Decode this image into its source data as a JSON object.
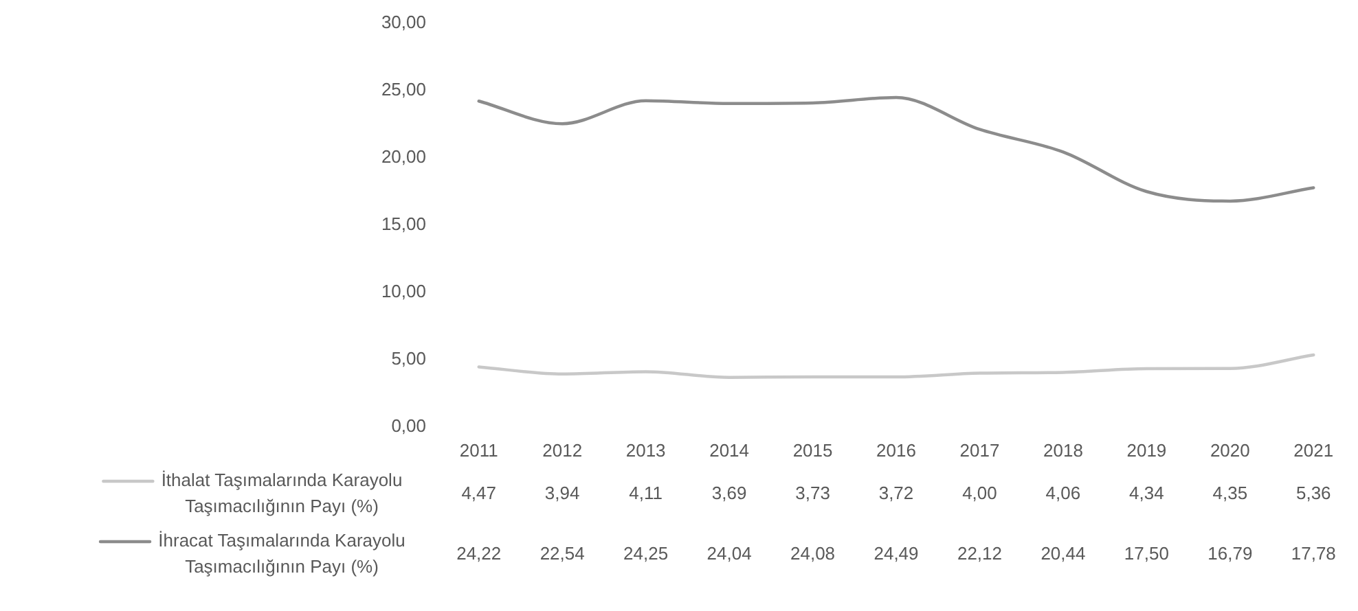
{
  "chart_data": {
    "type": "line",
    "categories": [
      "2011",
      "2012",
      "2013",
      "2014",
      "2015",
      "2016",
      "2017",
      "2018",
      "2019",
      "2020",
      "2021"
    ],
    "series": [
      {
        "name": "İthalat Taşımalarında Karayolu Taşımacılığının Payı (%)",
        "color": "#c8c8c8",
        "values": [
          4.47,
          3.94,
          4.11,
          3.69,
          3.73,
          3.72,
          4.0,
          4.06,
          4.34,
          4.35,
          5.36
        ],
        "value_labels": [
          "4,47",
          "3,94",
          "4,11",
          "3,69",
          "3,73",
          "3,72",
          "4,00",
          "4,06",
          "4,34",
          "4,35",
          "5,36"
        ]
      },
      {
        "name": "İhracat Taşımalarında Karayolu Taşımacılığının Payı (%)",
        "color": "#8c8c8c",
        "values": [
          24.22,
          22.54,
          24.25,
          24.04,
          24.08,
          24.49,
          22.12,
          20.44,
          17.5,
          16.79,
          17.78
        ],
        "value_labels": [
          "24,22",
          "22,54",
          "24,25",
          "24,04",
          "24,08",
          "24,49",
          "22,12",
          "20,44",
          "17,50",
          "16,79",
          "17,78"
        ]
      }
    ],
    "ylim": [
      0,
      30
    ],
    "yticks": [
      {
        "value": 0,
        "label": "0,00"
      },
      {
        "value": 5,
        "label": "5,00"
      },
      {
        "value": 10,
        "label": "10,00"
      },
      {
        "value": 15,
        "label": "15,00"
      },
      {
        "value": 20,
        "label": "20,00"
      },
      {
        "value": 25,
        "label": "25,00"
      },
      {
        "value": 30,
        "label": "30,00"
      }
    ],
    "grid": false,
    "legend": "bottom",
    "marker": "none",
    "line_style": "solid"
  }
}
